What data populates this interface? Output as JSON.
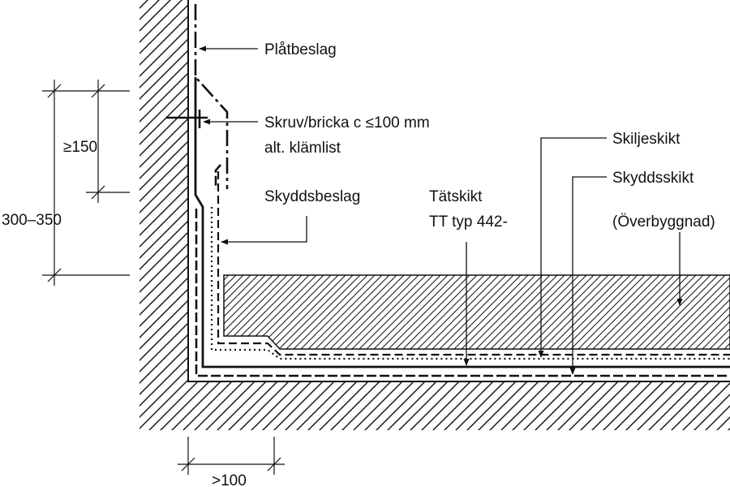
{
  "labels": {
    "platbeslag": "Plåtbeslag",
    "skruv_line1": "Skruv/bricka c ≤100 mm",
    "skruv_line2": "alt. klämlist",
    "skyddsbeslag": "Skyddsbeslag",
    "tatskikt_line1": "Tätskikt",
    "tatskikt_line2": "TT typ 442-",
    "skiljeskikt": "Skiljeskikt",
    "skyddsskikt": "Skyddsskikt",
    "overbyggnad": "(Överbyggnad)"
  },
  "dimensions": {
    "total_height": "300–350",
    "upturn_min": "≥150",
    "horizontal_min": ">100"
  }
}
